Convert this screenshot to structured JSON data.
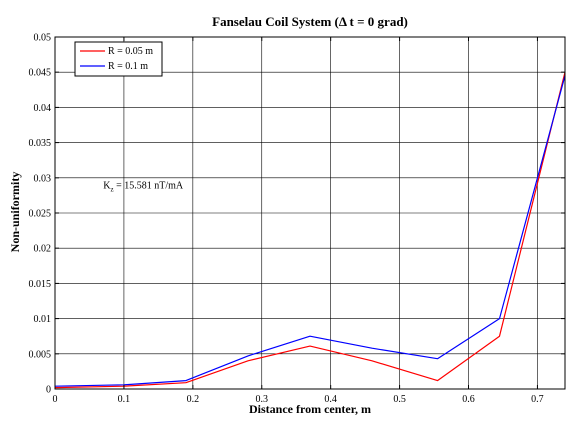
{
  "chart_data": {
    "type": "line",
    "title": "Fanselau Coil System (Δ t = 0 grad)",
    "xlabel": "Distance from center, m",
    "ylabel": "Non-uniformity",
    "xlim": [
      0,
      0.74
    ],
    "ylim": [
      0,
      0.05
    ],
    "x_ticks": [
      0,
      0.1,
      0.2,
      0.3,
      0.4,
      0.5,
      0.6,
      0.7
    ],
    "x_tick_labels": [
      "0",
      "0.1",
      "0.2",
      "0.3",
      "0.4",
      "0.5",
      "0.6",
      "0.7"
    ],
    "y_ticks": [
      0,
      0.005,
      0.01,
      0.015,
      0.02,
      0.025,
      0.03,
      0.035,
      0.04,
      0.045,
      0.05
    ],
    "y_tick_labels": [
      "0",
      "0.005",
      "0.01",
      "0.015",
      "0.02",
      "0.025",
      "0.03",
      "0.035",
      "0.04",
      "0.045",
      "0.05"
    ],
    "grid": true,
    "legend_position": "top-left",
    "series": [
      {
        "name": "R = 0.05 m",
        "color": "#ff0000",
        "x": [
          0,
          0.1,
          0.19,
          0.28,
          0.37,
          0.46,
          0.555,
          0.645,
          0.74
        ],
        "values": [
          0.0002,
          0.0004,
          0.0009,
          0.004,
          0.0061,
          0.004,
          0.0012,
          0.0075,
          0.045
        ]
      },
      {
        "name": "R = 0.1 m",
        "color": "#0000ff",
        "x": [
          0,
          0.1,
          0.19,
          0.28,
          0.37,
          0.46,
          0.555,
          0.645,
          0.74
        ],
        "values": [
          0.0004,
          0.0006,
          0.0012,
          0.0047,
          0.0075,
          0.0058,
          0.0043,
          0.01,
          0.0445
        ]
      }
    ],
    "annotation": {
      "prefix": "K",
      "subscript": "z",
      "suffix": " = 15.581 nT/mA",
      "x": 0.07,
      "y": 0.0285
    }
  }
}
